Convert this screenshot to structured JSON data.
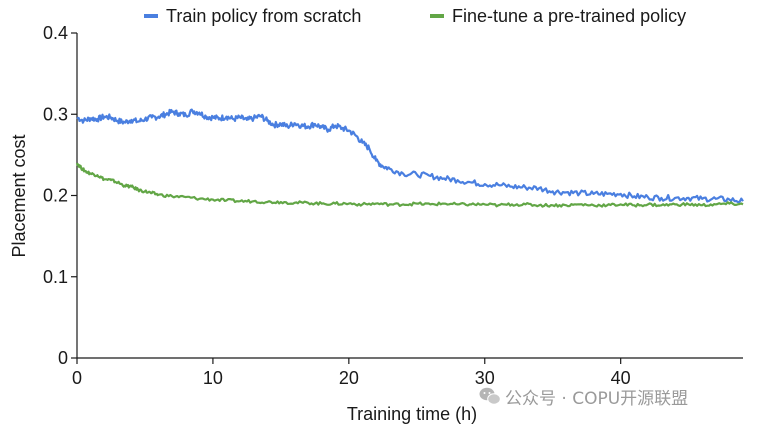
{
  "chart_data": {
    "type": "line",
    "title": "",
    "xlabel": "Training time (h)",
    "ylabel": "Placement cost",
    "xlim": [
      0,
      49
    ],
    "ylim": [
      0,
      0.4
    ],
    "xticks": [
      0,
      10,
      20,
      30,
      40
    ],
    "xtick_labels": [
      "0",
      "10",
      "20",
      "30",
      "40"
    ],
    "yticks": [
      0,
      0.1,
      0.2,
      0.3,
      0.4
    ],
    "ytick_labels": [
      "0",
      "0.1",
      "0.2",
      "0.3",
      "0.4"
    ],
    "grid": false,
    "legend_position": "top",
    "series": [
      {
        "name": "Train policy from scratch",
        "color": "#4a7fe0",
        "x": [
          0,
          0.5,
          1,
          1.5,
          2,
          2.5,
          3,
          3.5,
          4,
          4.5,
          5,
          5.5,
          6,
          6.5,
          7,
          7.5,
          8,
          8.5,
          9,
          9.5,
          10,
          10.5,
          11,
          11.5,
          12,
          12.5,
          13,
          13.5,
          14,
          14.5,
          15,
          15.5,
          16,
          16.5,
          17,
          17.5,
          18,
          18.5,
          19,
          19.5,
          20,
          20.5,
          21,
          21.5,
          22,
          22.5,
          23,
          24,
          25,
          26,
          27,
          28,
          29,
          30,
          31,
          32,
          33,
          34,
          35,
          36,
          37,
          38,
          39,
          40,
          41,
          42,
          43,
          44,
          45,
          46,
          47,
          48,
          49
        ],
        "values": [
          0.296,
          0.292,
          0.295,
          0.294,
          0.297,
          0.296,
          0.292,
          0.29,
          0.293,
          0.291,
          0.294,
          0.296,
          0.297,
          0.3,
          0.303,
          0.301,
          0.299,
          0.304,
          0.302,
          0.297,
          0.296,
          0.295,
          0.297,
          0.294,
          0.296,
          0.293,
          0.295,
          0.298,
          0.292,
          0.287,
          0.288,
          0.285,
          0.289,
          0.286,
          0.285,
          0.288,
          0.284,
          0.281,
          0.286,
          0.283,
          0.28,
          0.274,
          0.265,
          0.258,
          0.243,
          0.236,
          0.233,
          0.227,
          0.226,
          0.224,
          0.221,
          0.219,
          0.216,
          0.214,
          0.213,
          0.211,
          0.21,
          0.209,
          0.205,
          0.204,
          0.203,
          0.202,
          0.202,
          0.202,
          0.199,
          0.198,
          0.197,
          0.197,
          0.197,
          0.196,
          0.196,
          0.195,
          0.193
        ]
      },
      {
        "name": "Fine-tune a pre-trained policy",
        "color": "#62a646",
        "x": [
          0,
          0.3,
          0.6,
          1,
          1.5,
          2,
          2.5,
          3,
          3.5,
          4,
          4.5,
          5,
          5.5,
          6,
          7,
          8,
          9,
          10,
          11,
          12,
          13,
          14,
          15,
          16,
          17,
          18,
          19,
          20,
          21,
          22,
          23,
          24,
          25,
          26,
          27,
          28,
          29,
          30,
          31,
          32,
          33,
          34,
          35,
          36,
          37,
          38,
          39,
          40,
          41,
          42,
          43,
          44,
          45,
          46,
          47,
          48,
          49
        ],
        "values": [
          0.24,
          0.234,
          0.23,
          0.227,
          0.225,
          0.22,
          0.219,
          0.216,
          0.212,
          0.211,
          0.207,
          0.205,
          0.203,
          0.201,
          0.199,
          0.198,
          0.196,
          0.195,
          0.194,
          0.193,
          0.193,
          0.192,
          0.192,
          0.191,
          0.191,
          0.19,
          0.19,
          0.19,
          0.189,
          0.19,
          0.189,
          0.189,
          0.19,
          0.189,
          0.19,
          0.189,
          0.189,
          0.189,
          0.188,
          0.189,
          0.189,
          0.188,
          0.188,
          0.188,
          0.189,
          0.188,
          0.188,
          0.189,
          0.188,
          0.189,
          0.188,
          0.189,
          0.189,
          0.188,
          0.189,
          0.19,
          0.189
        ]
      }
    ]
  },
  "watermark": {
    "icon": "wechat-icon",
    "text": "公众号 · COPU开源联盟"
  }
}
